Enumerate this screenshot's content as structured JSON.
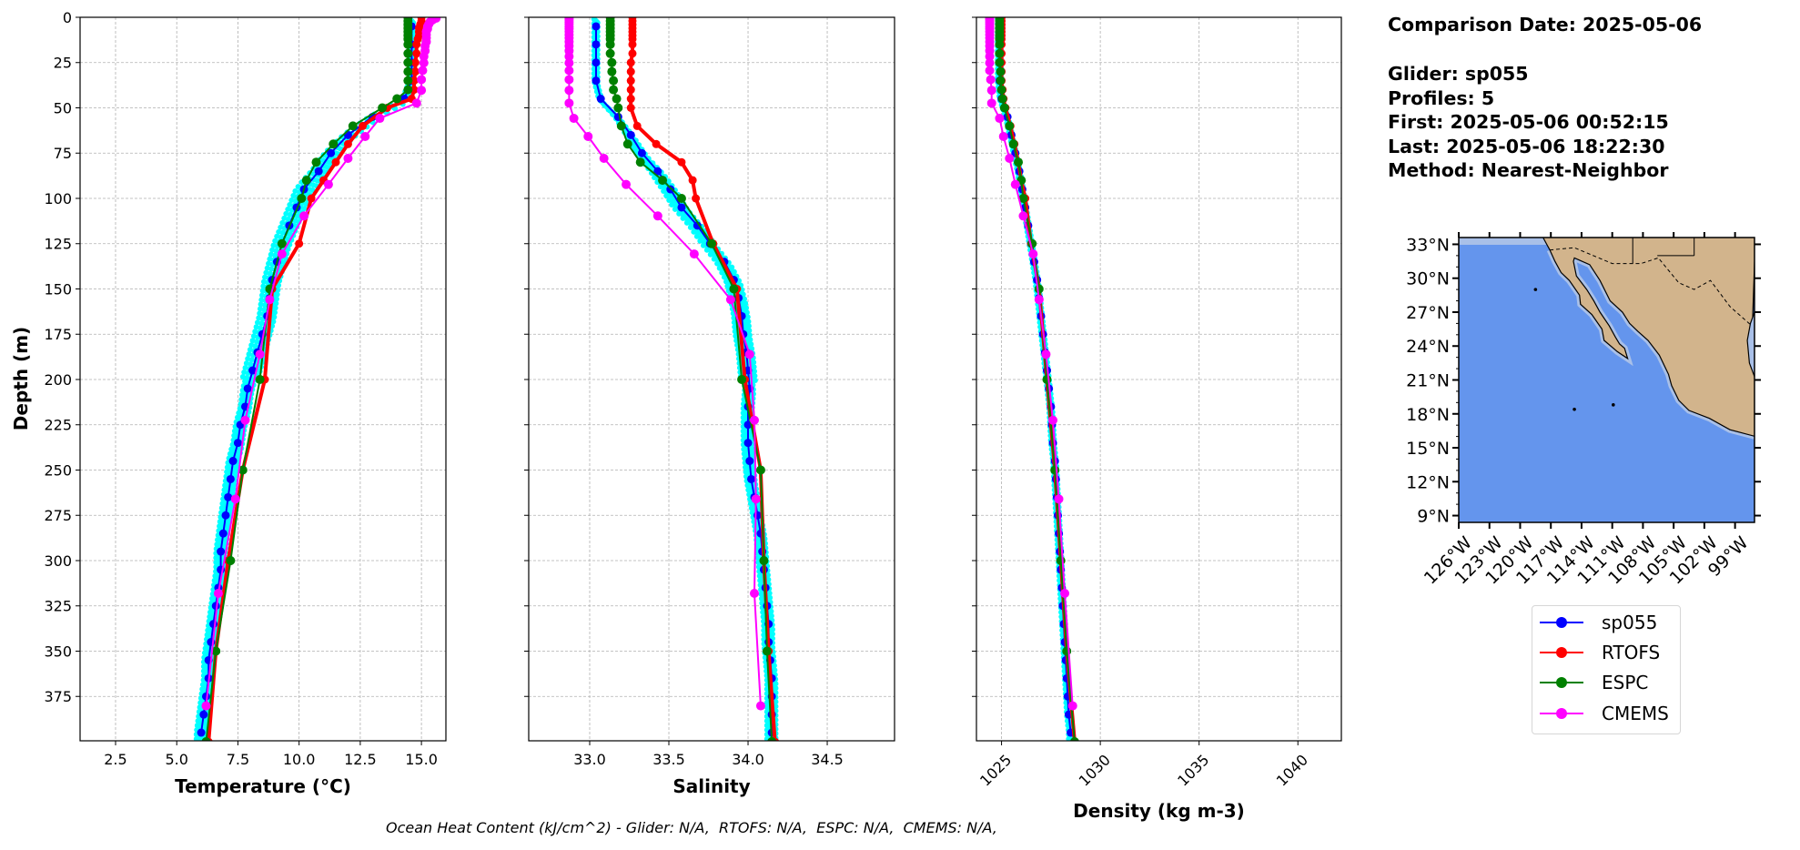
{
  "info": {
    "comparison_date": "Comparison Date: 2025-05-06",
    "glider": "Glider: sp055",
    "profiles": "Profiles: 5",
    "first": "First: 2025-05-06 00:52:15",
    "last": "Last: 2025-05-06 18:22:30",
    "method": "Method: Nearest-Neighbor"
  },
  "footer": "Ocean Heat Content (kJ/cm^2) - Glider: N/A,  RTOFS: N/A,  ESPC: N/A,  CMEMS: N/A,",
  "legend": [
    {
      "label": "sp055",
      "color": "#0000ff"
    },
    {
      "label": "RTOFS",
      "color": "#ff0000"
    },
    {
      "label": "ESPC",
      "color": "#008000"
    },
    {
      "label": "CMEMS",
      "color": "#ff00ff"
    }
  ],
  "colors": {
    "glider_raw": "#00ffff",
    "ocean": "#6495ed",
    "shelf": "#a9c0e8",
    "land": "#d2b48c"
  },
  "depths": {
    "sp055": [
      5,
      15,
      25,
      35,
      45,
      55,
      65,
      75,
      85,
      95,
      105,
      115,
      125,
      135,
      145,
      155,
      165,
      175,
      185,
      195,
      205,
      215,
      225,
      235,
      245,
      255,
      265,
      275,
      285,
      295,
      305,
      315,
      325,
      335,
      345,
      355,
      365,
      375,
      385,
      395
    ],
    "RTOFS": [
      0,
      2,
      4,
      6,
      8,
      10,
      12,
      15,
      20,
      25,
      30,
      35,
      40,
      45,
      50,
      60,
      70,
      80,
      90,
      100,
      125,
      150,
      200,
      250,
      300,
      350,
      400
    ],
    "ESPC": [
      0,
      2,
      4,
      6,
      8,
      10,
      12,
      15,
      20,
      25,
      30,
      35,
      40,
      45,
      50,
      60,
      70,
      80,
      90,
      100,
      125,
      150,
      200,
      250,
      300,
      350,
      400
    ],
    "CMEMS": [
      0.5,
      1.5,
      2.6,
      3.8,
      5.1,
      6.4,
      7.9,
      9.6,
      11.4,
      13.5,
      15.8,
      18.5,
      21.6,
      25.2,
      29.4,
      34.4,
      40.3,
      47.4,
      55.8,
      65.8,
      77.9,
      92.3,
      109.7,
      130.7,
      155.9,
      186.1,
      222.5,
      266.0,
      318.1,
      380.2
    ]
  },
  "chart_data": [
    {
      "type": "line",
      "xlabel": "Temperature (°C)",
      "ylabel": "Depth (m)",
      "xlim": [
        1.05,
        16.0
      ],
      "ylim": [
        399.5,
        0
      ],
      "xticks": [
        "2.5",
        "5.0",
        "7.5",
        "10.0",
        "12.5",
        "15.0"
      ],
      "yticks": [
        "0",
        "25",
        "50",
        "75",
        "100",
        "125",
        "150",
        "175",
        "200",
        "225",
        "250",
        "275",
        "300",
        "325",
        "350",
        "375"
      ],
      "grid": true,
      "series": [
        {
          "name": "sp055",
          "values": [
            14.6,
            14.6,
            14.6,
            14.6,
            14.3,
            13.0,
            12.0,
            11.3,
            10.8,
            10.2,
            9.9,
            9.6,
            9.3,
            9.1,
            8.9,
            8.8,
            8.7,
            8.5,
            8.3,
            8.1,
            7.9,
            7.8,
            7.6,
            7.5,
            7.3,
            7.2,
            7.1,
            7.0,
            6.9,
            6.8,
            6.8,
            6.7,
            6.6,
            6.5,
            6.4,
            6.3,
            6.3,
            6.2,
            6.1,
            6.0
          ]
        },
        {
          "name": "RTOFS",
          "values": [
            15.0,
            15.0,
            14.95,
            14.9,
            14.9,
            14.9,
            14.85,
            14.8,
            14.8,
            14.75,
            14.75,
            14.7,
            14.7,
            14.6,
            13.6,
            12.6,
            12.0,
            11.5,
            11.0,
            10.5,
            10.0,
            8.9,
            8.6,
            7.7,
            7.1,
            6.6,
            6.3
          ]
        },
        {
          "name": "ESPC",
          "values": [
            14.45,
            14.45,
            14.45,
            14.45,
            14.45,
            14.45,
            14.45,
            14.45,
            14.45,
            14.45,
            14.45,
            14.45,
            14.45,
            14.0,
            13.4,
            12.2,
            11.4,
            10.7,
            10.3,
            10.1,
            9.3,
            8.8,
            8.4,
            7.7,
            7.2,
            6.6,
            6.2
          ]
        },
        {
          "name": "CMEMS",
          "values": [
            15.6,
            15.45,
            15.35,
            15.3,
            15.25,
            15.25,
            15.2,
            15.2,
            15.2,
            15.2,
            15.15,
            15.15,
            15.1,
            15.1,
            15.05,
            15.0,
            15.0,
            14.8,
            13.3,
            12.7,
            12.0,
            11.2,
            10.2,
            9.3,
            8.8,
            8.4,
            7.8,
            7.4,
            6.7,
            6.2
          ]
        }
      ]
    },
    {
      "type": "line",
      "xlabel": "Salinity",
      "xlim": [
        32.615,
        34.925
      ],
      "ylim": [
        399.5,
        0
      ],
      "xticks": [
        "33.0",
        "33.5",
        "34.0",
        "34.5"
      ],
      "grid": true,
      "series": [
        {
          "name": "sp055",
          "values": [
            33.04,
            33.04,
            33.04,
            33.04,
            33.07,
            33.18,
            33.26,
            33.33,
            33.43,
            33.51,
            33.58,
            33.68,
            33.76,
            33.85,
            33.91,
            33.94,
            33.96,
            33.97,
            33.99,
            34.0,
            34.01,
            34.0,
            34.0,
            34.0,
            34.01,
            34.02,
            34.04,
            34.06,
            34.08,
            34.09,
            34.1,
            34.11,
            34.12,
            34.13,
            34.13,
            34.14,
            34.15,
            34.15,
            34.15,
            34.15
          ]
        },
        {
          "name": "RTOFS",
          "values": [
            33.27,
            33.27,
            33.27,
            33.27,
            33.27,
            33.27,
            33.27,
            33.27,
            33.27,
            33.26,
            33.26,
            33.26,
            33.26,
            33.26,
            33.26,
            33.3,
            33.42,
            33.58,
            33.65,
            33.67,
            33.78,
            33.93,
            33.98,
            34.08,
            34.1,
            34.13,
            34.17
          ]
        },
        {
          "name": "ESPC",
          "values": [
            33.13,
            33.13,
            33.13,
            33.13,
            33.13,
            33.13,
            33.13,
            33.13,
            33.13,
            33.14,
            33.14,
            33.15,
            33.15,
            33.17,
            33.18,
            33.2,
            33.24,
            33.32,
            33.46,
            33.58,
            33.77,
            33.91,
            33.96,
            34.08,
            34.1,
            34.12,
            34.15
          ]
        },
        {
          "name": "CMEMS",
          "values": [
            32.87,
            32.87,
            32.87,
            32.87,
            32.87,
            32.87,
            32.87,
            32.87,
            32.87,
            32.87,
            32.87,
            32.87,
            32.87,
            32.87,
            32.87,
            32.87,
            32.87,
            32.87,
            32.9,
            32.99,
            33.09,
            33.23,
            33.43,
            33.66,
            33.89,
            34.01,
            34.04,
            34.05,
            34.04,
            34.08
          ]
        }
      ]
    },
    {
      "type": "line",
      "xlabel": "Density (kg m-3)",
      "xlim": [
        1023.73,
        1042.2
      ],
      "ylim": [
        399.5,
        0
      ],
      "xticks": [
        "1025",
        "1030",
        "1035",
        "1040"
      ],
      "grid": true,
      "series": [
        {
          "name": "sp055",
          "values": [
            1024.9,
            1024.9,
            1024.9,
            1024.9,
            1025.0,
            1025.3,
            1025.5,
            1025.7,
            1025.9,
            1026.05,
            1026.2,
            1026.35,
            1026.5,
            1026.65,
            1026.8,
            1026.9,
            1027.0,
            1027.1,
            1027.2,
            1027.3,
            1027.4,
            1027.5,
            1027.55,
            1027.6,
            1027.7,
            1027.75,
            1027.8,
            1027.85,
            1027.9,
            1027.95,
            1028.0,
            1028.05,
            1028.1,
            1028.15,
            1028.2,
            1028.25,
            1028.3,
            1028.35,
            1028.4,
            1028.5
          ]
        },
        {
          "name": "RTOFS",
          "values": [
            1025.0,
            1025.0,
            1025.0,
            1025.0,
            1025.0,
            1025.0,
            1025.0,
            1025.0,
            1025.0,
            1025.0,
            1025.0,
            1025.0,
            1025.05,
            1025.1,
            1025.2,
            1025.45,
            1025.65,
            1025.85,
            1026.0,
            1026.2,
            1026.5,
            1026.9,
            1027.3,
            1027.7,
            1028.0,
            1028.3,
            1028.7
          ]
        },
        {
          "name": "ESPC",
          "values": [
            1024.9,
            1024.9,
            1024.9,
            1024.9,
            1024.9,
            1024.9,
            1024.9,
            1024.9,
            1024.9,
            1024.9,
            1024.95,
            1024.95,
            1025.0,
            1025.05,
            1025.15,
            1025.4,
            1025.6,
            1025.85,
            1026.0,
            1026.1,
            1026.55,
            1026.9,
            1027.3,
            1027.7,
            1028.0,
            1028.3,
            1028.7
          ]
        },
        {
          "name": "CMEMS",
          "values": [
            1024.4,
            1024.4,
            1024.4,
            1024.4,
            1024.4,
            1024.4,
            1024.4,
            1024.4,
            1024.4,
            1024.4,
            1024.4,
            1024.4,
            1024.4,
            1024.4,
            1024.4,
            1024.45,
            1024.5,
            1024.5,
            1024.9,
            1025.1,
            1025.4,
            1025.7,
            1026.1,
            1026.6,
            1026.9,
            1027.25,
            1027.6,
            1027.9,
            1028.2,
            1028.6
          ]
        }
      ]
    },
    {
      "type": "map",
      "lon_range": [
        -126,
        -97.1
      ],
      "lat_range": [
        8.4,
        33.6
      ],
      "lat_ticks": [
        "9°N",
        "12°N",
        "15°N",
        "18°N",
        "21°N",
        "24°N",
        "27°N",
        "30°N",
        "33°N"
      ],
      "lon_ticks": [
        "126°W",
        "123°W",
        "120°W",
        "117°W",
        "114°W",
        "111°W",
        "108°W",
        "105°W",
        "102°W",
        "99°W"
      ]
    }
  ]
}
